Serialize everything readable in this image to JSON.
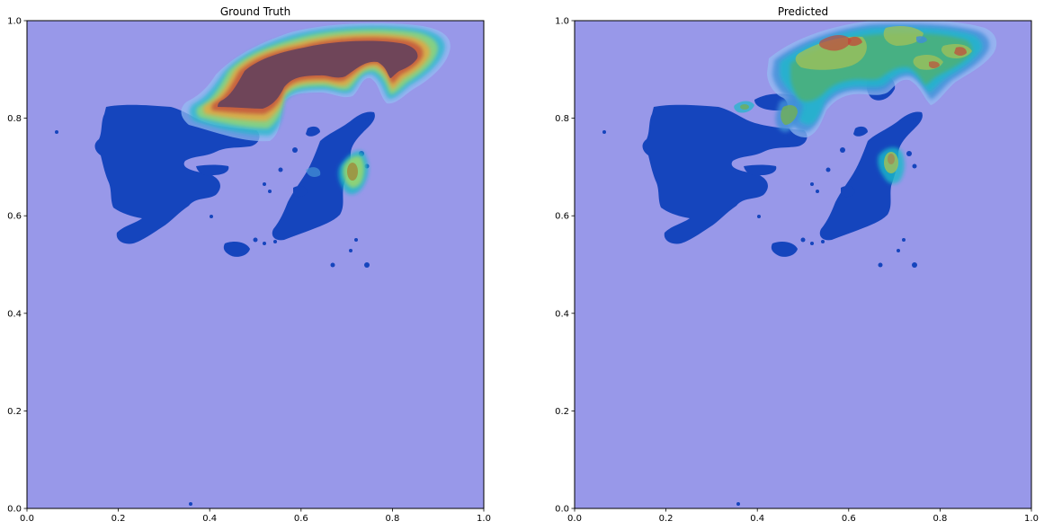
{
  "chart_data": [
    {
      "type": "heatmap",
      "title": "Ground Truth",
      "xlabel": "",
      "ylabel": "",
      "xlim": [
        0,
        1
      ],
      "ylim": [
        0,
        1
      ],
      "x_ticks": [
        "0.0",
        "0.2",
        "0.4",
        "0.6",
        "0.8",
        "1.0"
      ],
      "y_ticks": [
        "0.0",
        "0.2",
        "0.4",
        "0.6",
        "0.8",
        "1.0"
      ],
      "grid": false,
      "background_color": "#9898e9",
      "landmass_color": "#1545bd",
      "hotspots": [
        {
          "name": "northern-ridge",
          "x": 0.68,
          "y": 0.93,
          "rx": 0.2,
          "ry": 0.065,
          "intensity": 1.0
        },
        {
          "name": "west-arm",
          "x": 0.45,
          "y": 0.81,
          "rx": 0.08,
          "ry": 0.035,
          "intensity": 1.0
        },
        {
          "name": "neck",
          "x": 0.54,
          "y": 0.86,
          "rx": 0.05,
          "ry": 0.04,
          "intensity": 0.95
        },
        {
          "name": "east-arm",
          "x": 0.78,
          "y": 0.87,
          "rx": 0.05,
          "ry": 0.05,
          "intensity": 0.9
        },
        {
          "name": "island-cluster",
          "x": 0.695,
          "y": 0.705,
          "rx": 0.025,
          "ry": 0.045,
          "intensity": 0.85
        }
      ]
    },
    {
      "type": "heatmap",
      "title": "Predicted",
      "xlabel": "",
      "ylabel": "",
      "xlim": [
        0,
        1
      ],
      "ylim": [
        0,
        1
      ],
      "x_ticks": [
        "0.0",
        "0.2",
        "0.4",
        "0.6",
        "0.8",
        "1.0"
      ],
      "y_ticks": [
        "0.0",
        "0.2",
        "0.4",
        "0.6",
        "0.8",
        "1.0"
      ],
      "grid": false,
      "background_color": "#9898e9",
      "landmass_color": "#1545bd",
      "hotspots": [
        {
          "name": "northern-ridge",
          "x": 0.7,
          "y": 0.92,
          "rx": 0.19,
          "ry": 0.06,
          "intensity": 0.65
        },
        {
          "name": "north-peak",
          "x": 0.62,
          "y": 0.95,
          "rx": 0.05,
          "ry": 0.025,
          "intensity": 0.8
        },
        {
          "name": "west-peak",
          "x": 0.5,
          "y": 0.92,
          "rx": 0.05,
          "ry": 0.02,
          "intensity": 0.7
        },
        {
          "name": "east-peak",
          "x": 0.86,
          "y": 0.93,
          "rx": 0.03,
          "ry": 0.02,
          "intensity": 0.75
        },
        {
          "name": "west-blob",
          "x": 0.48,
          "y": 0.8,
          "rx": 0.03,
          "ry": 0.03,
          "intensity": 0.6
        },
        {
          "name": "small-west-blob",
          "x": 0.38,
          "y": 0.825,
          "rx": 0.02,
          "ry": 0.012,
          "intensity": 0.5
        },
        {
          "name": "island-cluster",
          "x": 0.69,
          "y": 0.715,
          "rx": 0.022,
          "ry": 0.035,
          "intensity": 0.65
        }
      ]
    }
  ]
}
